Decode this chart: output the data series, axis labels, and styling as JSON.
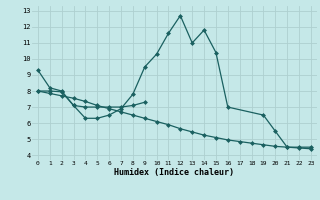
{
  "title": "",
  "xlabel": "Humidex (Indice chaleur)",
  "background_color": "#c5e8e8",
  "grid_color": "#aed0d0",
  "line_color": "#1a6060",
  "xlim": [
    -0.5,
    23.5
  ],
  "ylim": [
    3.7,
    13.3
  ],
  "xticks": [
    0,
    1,
    2,
    3,
    4,
    5,
    6,
    7,
    8,
    9,
    10,
    11,
    12,
    13,
    14,
    15,
    16,
    17,
    18,
    19,
    20,
    21,
    22,
    23
  ],
  "yticks": [
    4,
    5,
    6,
    7,
    8,
    9,
    10,
    11,
    12,
    13
  ],
  "line1_x": [
    0,
    1,
    2,
    3,
    4,
    5,
    6,
    7,
    8,
    9,
    10,
    11,
    12,
    13,
    14,
    15,
    16,
    19,
    20,
    21,
    22,
    23
  ],
  "line1_y": [
    9.3,
    8.2,
    8.0,
    7.1,
    6.3,
    6.3,
    6.5,
    6.9,
    7.8,
    9.5,
    10.3,
    11.6,
    12.7,
    11.0,
    11.8,
    10.4,
    7.0,
    6.5,
    5.5,
    4.5,
    4.5,
    4.5
  ],
  "line2_x": [
    0,
    1,
    2,
    3,
    4,
    5,
    6,
    7,
    8,
    9
  ],
  "line2_y": [
    8.0,
    8.0,
    7.95,
    7.1,
    7.0,
    7.0,
    7.0,
    7.0,
    7.1,
    7.3
  ],
  "line3_x": [
    0,
    1,
    2,
    3,
    4,
    5,
    6,
    7,
    8,
    9,
    10,
    11,
    12,
    13,
    14,
    15,
    16,
    17,
    18,
    19,
    20,
    21,
    22,
    23
  ],
  "line3_y": [
    8.0,
    7.85,
    7.7,
    7.55,
    7.35,
    7.1,
    6.9,
    6.7,
    6.5,
    6.3,
    6.1,
    5.9,
    5.65,
    5.45,
    5.25,
    5.1,
    4.95,
    4.85,
    4.75,
    4.65,
    4.55,
    4.5,
    4.45,
    4.4
  ],
  "marker_size": 2.5,
  "linewidth": 0.9
}
